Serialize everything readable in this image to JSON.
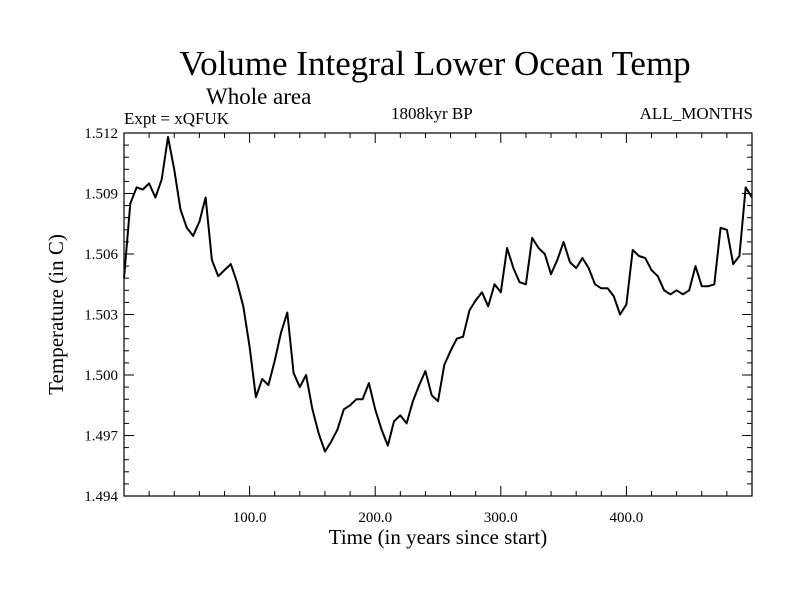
{
  "chart_data": {
    "type": "line",
    "title": "Volume Integral Lower Ocean Temp",
    "subtitle": "Whole area",
    "experiment": "Expt = xQFUK",
    "period": "1808kyr BP",
    "months": "ALL_MONTHS",
    "xlabel": "Time (in years since start)",
    "ylabel": "Temperature (in C)",
    "xlim": [
      0,
      500
    ],
    "ylim": [
      1.494,
      1.512
    ],
    "x_ticks": [
      100,
      200,
      300,
      400
    ],
    "x_tick_labels": [
      "100.0",
      "200.0",
      "300.0",
      "400.0"
    ],
    "y_ticks": [
      1.494,
      1.497,
      1.5,
      1.503,
      1.506,
      1.509,
      1.512
    ],
    "y_tick_labels": [
      "1.494",
      "1.497",
      "1.500",
      "1.503",
      "1.506",
      "1.509",
      "1.512"
    ],
    "series": [
      {
        "name": "Temperature",
        "x": [
          0,
          5,
          10,
          15,
          20,
          25,
          30,
          35,
          40,
          45,
          50,
          55,
          60,
          65,
          70,
          75,
          80,
          85,
          90,
          95,
          100,
          105,
          110,
          115,
          120,
          125,
          130,
          135,
          140,
          145,
          150,
          155,
          160,
          165,
          170,
          175,
          180,
          185,
          190,
          195,
          200,
          205,
          210,
          215,
          220,
          225,
          230,
          235,
          240,
          245,
          250,
          255,
          260,
          265,
          270,
          275,
          280,
          285,
          290,
          295,
          300,
          305,
          310,
          315,
          320,
          325,
          330,
          335,
          340,
          345,
          350,
          355,
          360,
          365,
          370,
          375,
          380,
          385,
          390,
          395,
          400,
          405,
          410,
          415,
          420,
          425,
          430,
          435,
          440,
          445,
          450,
          455,
          460,
          465,
          470,
          475,
          480,
          485,
          490,
          495,
          500
        ],
        "values": [
          1.5048,
          1.5085,
          1.5093,
          1.5092,
          1.5095,
          1.5088,
          1.5097,
          1.5118,
          1.5102,
          1.5082,
          1.5073,
          1.5069,
          1.5076,
          1.5088,
          1.5057,
          1.5049,
          1.5052,
          1.5055,
          1.5046,
          1.5034,
          1.5014,
          1.4989,
          1.4998,
          1.4995,
          1.5007,
          1.5021,
          1.5031,
          1.5001,
          1.4994,
          1.5,
          1.4983,
          1.4971,
          1.4962,
          1.4967,
          1.4973,
          1.4983,
          1.4985,
          1.4988,
          1.4988,
          1.4996,
          1.4983,
          1.4973,
          1.4965,
          1.4977,
          1.498,
          1.4976,
          1.4987,
          1.4995,
          1.5002,
          1.499,
          1.4987,
          1.5005,
          1.5012,
          1.5018,
          1.5019,
          1.5032,
          1.5037,
          1.5041,
          1.5034,
          1.5045,
          1.5041,
          1.5063,
          1.5053,
          1.5046,
          1.5045,
          1.5068,
          1.5063,
          1.506,
          1.505,
          1.5057,
          1.5066,
          1.5056,
          1.5053,
          1.5058,
          1.5053,
          1.5045,
          1.5043,
          1.5043,
          1.5039,
          1.503,
          1.5035,
          1.5062,
          1.5059,
          1.5058,
          1.5052,
          1.5049,
          1.5042,
          1.504,
          1.5042,
          1.504,
          1.5042,
          1.5054,
          1.5044,
          1.5044,
          1.5045,
          1.5073,
          1.5072,
          1.5055,
          1.5059,
          1.5093,
          1.5088
        ]
      }
    ]
  }
}
